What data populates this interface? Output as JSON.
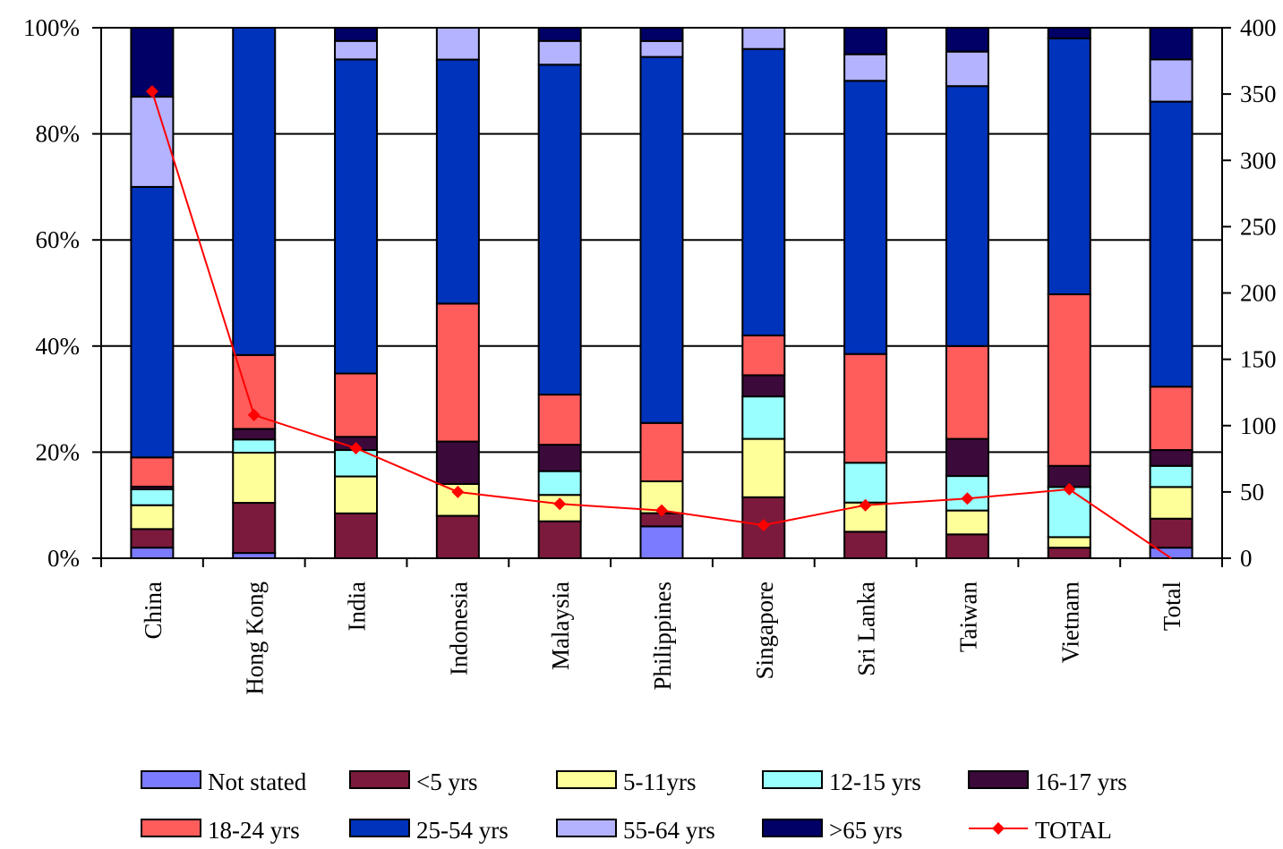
{
  "chart_data": {
    "type": "bar",
    "stacked": "percent",
    "categories": [
      "China",
      "Hong Kong",
      "India",
      "Indonesia",
      "Malaysia",
      "Philippines",
      "Singapore",
      "Sri Lanka",
      "Taiwan",
      "Vietnam",
      "Total"
    ],
    "series": [
      {
        "name": "Not stated",
        "color": "#7b7bff",
        "values": [
          2,
          1,
          0,
          0,
          0,
          6,
          0,
          0,
          0,
          0,
          2
        ]
      },
      {
        "name": "<5 yrs",
        "color": "#7b1a3c",
        "values": [
          3.5,
          9.5,
          8.5,
          8,
          7,
          2.5,
          11.5,
          5,
          4.5,
          2,
          5.5
        ]
      },
      {
        "name": "5-11yrs",
        "color": "#ffff99",
        "values": [
          4.5,
          9.5,
          7,
          6,
          5,
          6,
          11,
          5.5,
          4.5,
          2,
          6
        ]
      },
      {
        "name": "12-15 yrs",
        "color": "#99ffff",
        "values": [
          3,
          2.5,
          5,
          0,
          4.5,
          0,
          8,
          7.5,
          6.5,
          9.5,
          4
        ]
      },
      {
        "name": "16-17 yrs",
        "color": "#3b0a3a",
        "values": [
          0.5,
          2,
          2.5,
          8,
          5,
          0,
          4,
          0,
          7,
          4,
          3
        ]
      },
      {
        "name": "18-24 yrs",
        "color": "#ff5c5c",
        "values": [
          5.5,
          14,
          12,
          26,
          9.5,
          11,
          7.5,
          20.5,
          17.5,
          32.5,
          12
        ]
      },
      {
        "name": "25-54 yrs",
        "color": "#0033bb",
        "values": [
          51,
          62,
          59.5,
          46,
          62.5,
          69,
          54,
          51.5,
          49,
          48.5,
          54
        ]
      },
      {
        "name": "55-64 yrs",
        "color": "#b3b3ff",
        "values": [
          17,
          0,
          3.5,
          6,
          4.5,
          3,
          4,
          5,
          6.5,
          0,
          8
        ]
      },
      {
        "name": ">65 yrs",
        "color": "#000066",
        "values": [
          13,
          0,
          2.5,
          0,
          2.5,
          2.5,
          0,
          5,
          4.5,
          2,
          6
        ]
      }
    ],
    "line": {
      "name": "TOTAL",
      "color": "#ff0000",
      "axis": "right",
      "values": [
        352,
        108,
        83,
        50,
        41,
        36,
        25,
        40,
        45,
        52,
        0
      ]
    },
    "y_left": {
      "ticks": [
        "0%",
        "20%",
        "40%",
        "60%",
        "80%",
        "100%"
      ],
      "ylim": [
        0,
        100
      ]
    },
    "y_right": {
      "ticks": [
        "0",
        "50",
        "100",
        "150",
        "200",
        "250",
        "300",
        "350",
        "400"
      ],
      "ylim": [
        0,
        400
      ]
    },
    "grid": true,
    "legend": "bottom",
    "title": "",
    "xlabel": "",
    "ylabel": ""
  }
}
